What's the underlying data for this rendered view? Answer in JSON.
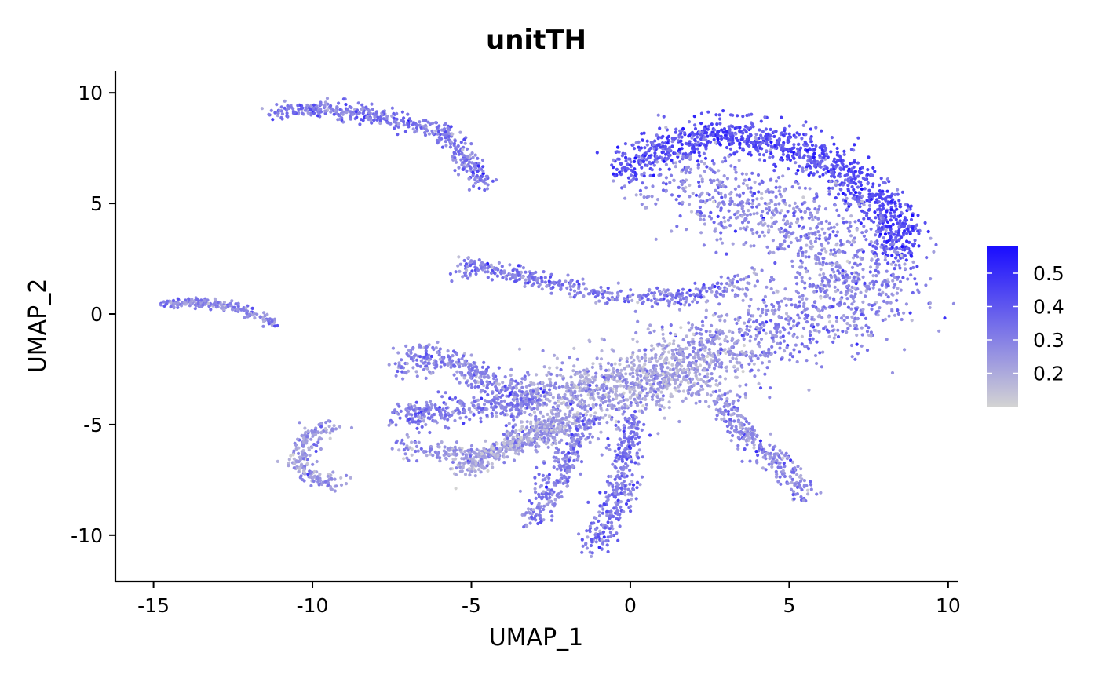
{
  "chart_data": {
    "type": "scatter",
    "title": "unitTH",
    "xlabel": "UMAP_1",
    "ylabel": "UMAP_2",
    "xlim": [
      -16.2,
      10.3
    ],
    "ylim": [
      -12.1,
      11.0
    ],
    "x_ticks": [
      -15,
      -10,
      -5,
      0,
      5,
      10
    ],
    "y_ticks": [
      -10,
      -5,
      0,
      5,
      10
    ],
    "x_tick_labels": [
      "-15",
      "-10",
      "-5",
      "0",
      "5",
      "10"
    ],
    "y_tick_labels": [
      "-10",
      "-5",
      "0",
      "5",
      "10"
    ],
    "grid": false,
    "color_scale": {
      "low": "#d3d3d3",
      "high": "#1a0dff",
      "min": 0.1,
      "max": 0.58,
      "ticks": [
        0.2,
        0.3,
        0.4,
        0.5
      ],
      "tick_labels": [
        "0.2",
        "0.3",
        "0.4",
        "0.5"
      ],
      "position": "right"
    },
    "point_color_hint": "#a48be6",
    "clusters": [
      {
        "name": "upper-left arc",
        "path": [
          [
            -11.2,
            9.1
          ],
          [
            -10,
            9.3
          ],
          [
            -8.5,
            9.1
          ],
          [
            -7,
            8.6
          ],
          [
            -6,
            8.4
          ],
          [
            -5.3,
            7.3
          ],
          [
            -4.5,
            5.8
          ]
        ],
        "spread": 0.2,
        "n": 450,
        "value": 0.32
      },
      {
        "name": "left strand",
        "path": [
          [
            -14.7,
            0.45
          ],
          [
            -13.5,
            0.5
          ],
          [
            -12.5,
            0.35
          ],
          [
            -11.2,
            -0.4
          ]
        ],
        "spread": 0.12,
        "n": 180,
        "value": 0.28
      },
      {
        "name": "middle strand",
        "path": [
          [
            -5.4,
            1.8
          ],
          [
            -5,
            2.3
          ],
          [
            -3.5,
            1.7
          ],
          [
            -1.5,
            1.1
          ],
          [
            0,
            0.7
          ],
          [
            2,
            0.9
          ],
          [
            3.5,
            1.4
          ]
        ],
        "spread": 0.2,
        "n": 400,
        "value": 0.3
      },
      {
        "name": "lower-left hook",
        "path": [
          [
            -9.3,
            -5.1
          ],
          [
            -10.2,
            -5.6
          ],
          [
            -10.5,
            -6.7
          ],
          [
            -10,
            -7.4
          ],
          [
            -9.2,
            -7.6
          ]
        ],
        "spread": 0.2,
        "n": 200,
        "value": 0.24
      },
      {
        "name": "upper cap",
        "path": [
          [
            -0.2,
            6.5
          ],
          [
            1,
            7.5
          ],
          [
            3,
            8.1
          ],
          [
            5,
            7.7
          ],
          [
            6.8,
            6.4
          ],
          [
            8.2,
            4.4
          ],
          [
            8.5,
            2.6
          ]
        ],
        "spread": 0.45,
        "n": 1100,
        "value": 0.42
      },
      {
        "name": "cap interior",
        "path": [
          [
            1.5,
            6.2
          ],
          [
            3.2,
            5.3
          ],
          [
            5.2,
            4.3
          ],
          [
            6.6,
            3.2
          ],
          [
            7.6,
            1.2
          ],
          [
            6.3,
            0.1
          ],
          [
            4.5,
            -0.6
          ],
          [
            3.2,
            -1.6
          ]
        ],
        "spread": 1.0,
        "n": 1300,
        "value": 0.28
      },
      {
        "name": "trunk",
        "path": [
          [
            -3,
            -3.9
          ],
          [
            -1.5,
            -3.7
          ],
          [
            0,
            -3.2
          ],
          [
            1.5,
            -2.4
          ],
          [
            3,
            -1.5
          ]
        ],
        "spread": 0.8,
        "n": 1100,
        "value": 0.22
      },
      {
        "name": "lower-left arm 1",
        "path": [
          [
            -7.2,
            -2.3
          ],
          [
            -6.2,
            -1.9
          ],
          [
            -5.3,
            -2.4
          ],
          [
            -4.4,
            -3.2
          ],
          [
            -3,
            -3.8
          ]
        ],
        "spread": 0.3,
        "n": 320,
        "value": 0.28
      },
      {
        "name": "lower-left arm 2",
        "path": [
          [
            -7.2,
            -4.6
          ],
          [
            -6,
            -4.4
          ],
          [
            -4.5,
            -4.2
          ],
          [
            -3,
            -4
          ]
        ],
        "spread": 0.3,
        "n": 320,
        "value": 0.3
      },
      {
        "name": "lower-left arm 3",
        "path": [
          [
            -7.2,
            -6
          ],
          [
            -6,
            -6.3
          ],
          [
            -4.7,
            -6.4
          ],
          [
            -3.2,
            -5.8
          ],
          [
            -2,
            -5
          ]
        ],
        "spread": 0.25,
        "n": 300,
        "value": 0.25
      },
      {
        "name": "lower-left arm 4",
        "path": [
          [
            -5.5,
            -7.1
          ],
          [
            -4.5,
            -6.5
          ],
          [
            -3.3,
            -5.4
          ],
          [
            -2,
            -4.6
          ]
        ],
        "spread": 0.25,
        "n": 260,
        "value": 0.2
      },
      {
        "name": "lower arm 1",
        "path": [
          [
            -3,
            -9.2
          ],
          [
            -2.6,
            -8.2
          ],
          [
            -2.2,
            -7
          ],
          [
            -1.8,
            -5.8
          ],
          [
            -1.2,
            -4.6
          ]
        ],
        "spread": 0.25,
        "n": 280,
        "value": 0.3
      },
      {
        "name": "lower arm 2",
        "path": [
          [
            -1.3,
            -10.7
          ],
          [
            -0.7,
            -9.5
          ],
          [
            -0.3,
            -8
          ],
          [
            -0.2,
            -6.5
          ],
          [
            0.1,
            -4.6
          ]
        ],
        "spread": 0.25,
        "n": 340,
        "value": 0.32
      },
      {
        "name": "lower-right arm",
        "path": [
          [
            5.5,
            -8.2
          ],
          [
            4.8,
            -6.8
          ],
          [
            4,
            -6
          ],
          [
            3.3,
            -5
          ],
          [
            2.8,
            -3.6
          ]
        ],
        "spread": 0.25,
        "n": 280,
        "value": 0.28
      }
    ]
  }
}
